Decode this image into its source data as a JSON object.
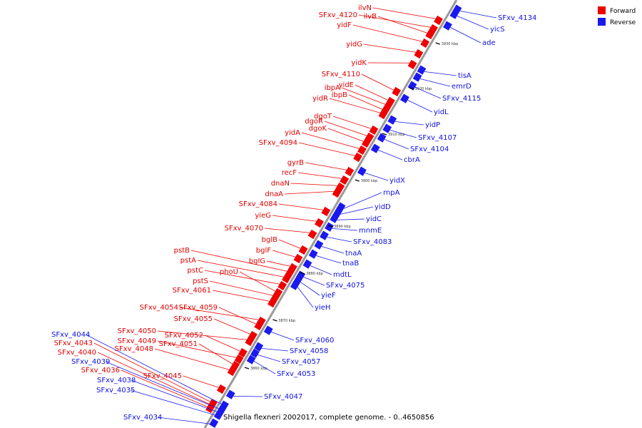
{
  "caption": "Shigella flexneri 2002017, complete genome. - 0..4650856",
  "colors": {
    "forward": "#ee0000",
    "reverse": "#1a1aee",
    "backbone": "#9a9a9a"
  },
  "legend": [
    {
      "label": "Forward",
      "color": "#ee0000"
    },
    {
      "label": "Reverse",
      "color": "#1a1aee"
    }
  ],
  "ticks": [
    "3860 kbp",
    "3870 kbp",
    "3880 kbp",
    "3890 kbp",
    "3900 kbp",
    "3910 kbp",
    "3920 kbp",
    "3930 kbp"
  ],
  "forward_genes": [
    "ilvN",
    "SFxv_4120",
    "ilvB",
    "yidF",
    "yidG",
    "yidK",
    "SFxv_4110",
    "yidE",
    "ibpA",
    "ibpB",
    "yidR",
    "dgoT",
    "dgoR",
    "dgoK",
    "yidA",
    "SFxv_4094",
    "gyrB",
    "recF",
    "dnaN",
    "dnaA",
    "SFxv_4084",
    "yieG",
    "SFxv_4070",
    "bglB",
    "bglF",
    "bglG",
    "pstB",
    "pstA",
    "pstC",
    "phoU",
    "pstS",
    "SFxv_4061",
    "SFxv_4054",
    "SFxv_4059",
    "SFxv_4055",
    "SFxv_4050",
    "SFxv_4052",
    "SFxv_4049",
    "SFxv_4051",
    "SFxv_4048",
    "SFxv_4045",
    "SFxv_4043",
    "SFxv_4040",
    "SFxv_4036"
  ],
  "reverse_genes": [
    "SFxv_4134",
    "yicS",
    "ade",
    "tisA",
    "emrD",
    "SFxv_4115",
    "yidL",
    "yidP",
    "SFxv_4107",
    "SFxv_4104",
    "cbrA",
    "yidX",
    "rnpA",
    "yidD",
    "yidC",
    "mnmE",
    "SFxv_4083",
    "tnaA",
    "tnaB",
    "mdtL",
    "SFxv_4075",
    "yieF",
    "yieH",
    "SFxv_4060",
    "SFxv_4058",
    "SFxv_4057",
    "SFxv_4053",
    "SFxv_4047",
    "SFxv_4044",
    "SFxv_4039",
    "SFxv_4038",
    "SFxv_4035",
    "SFxv_4034"
  ]
}
